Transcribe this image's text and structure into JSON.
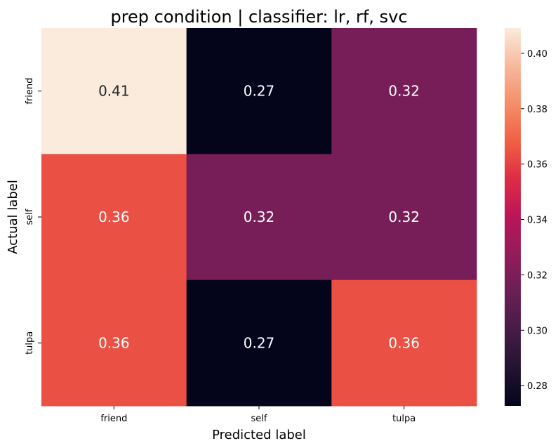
{
  "chart_data": {
    "type": "heatmap",
    "title": "prep condition | classifier: lr, rf, svc",
    "xlabel": "Predicted label",
    "ylabel": "Actual label",
    "x_categories": [
      "friend",
      "self",
      "tulpa"
    ],
    "y_categories": [
      "friend",
      "self",
      "tulpa"
    ],
    "values": [
      [
        0.409,
        0.273,
        0.318
      ],
      [
        0.364,
        0.318,
        0.318
      ],
      [
        0.364,
        0.273,
        0.364
      ]
    ],
    "annotations": [
      [
        "0.41",
        "0.27",
        "0.32"
      ],
      [
        "0.36",
        "0.32",
        "0.32"
      ],
      [
        "0.36",
        "0.27",
        "0.36"
      ]
    ],
    "colorbar": {
      "vmin": 0.2727,
      "vmax": 0.4091,
      "ticks": [
        0.28,
        0.3,
        0.32,
        0.34,
        0.36,
        0.38,
        0.4
      ],
      "tick_labels": [
        "0.28",
        "0.30",
        "0.32",
        "0.34",
        "0.36",
        "0.38",
        "0.40"
      ]
    },
    "colormap": [
      "#03051A",
      "#221331",
      "#451C47",
      "#6A1F56",
      "#921C5B",
      "#B91657",
      "#DD2C45",
      "#F06043",
      "#F58E68",
      "#F7B89C",
      "#FAEBDD"
    ]
  }
}
